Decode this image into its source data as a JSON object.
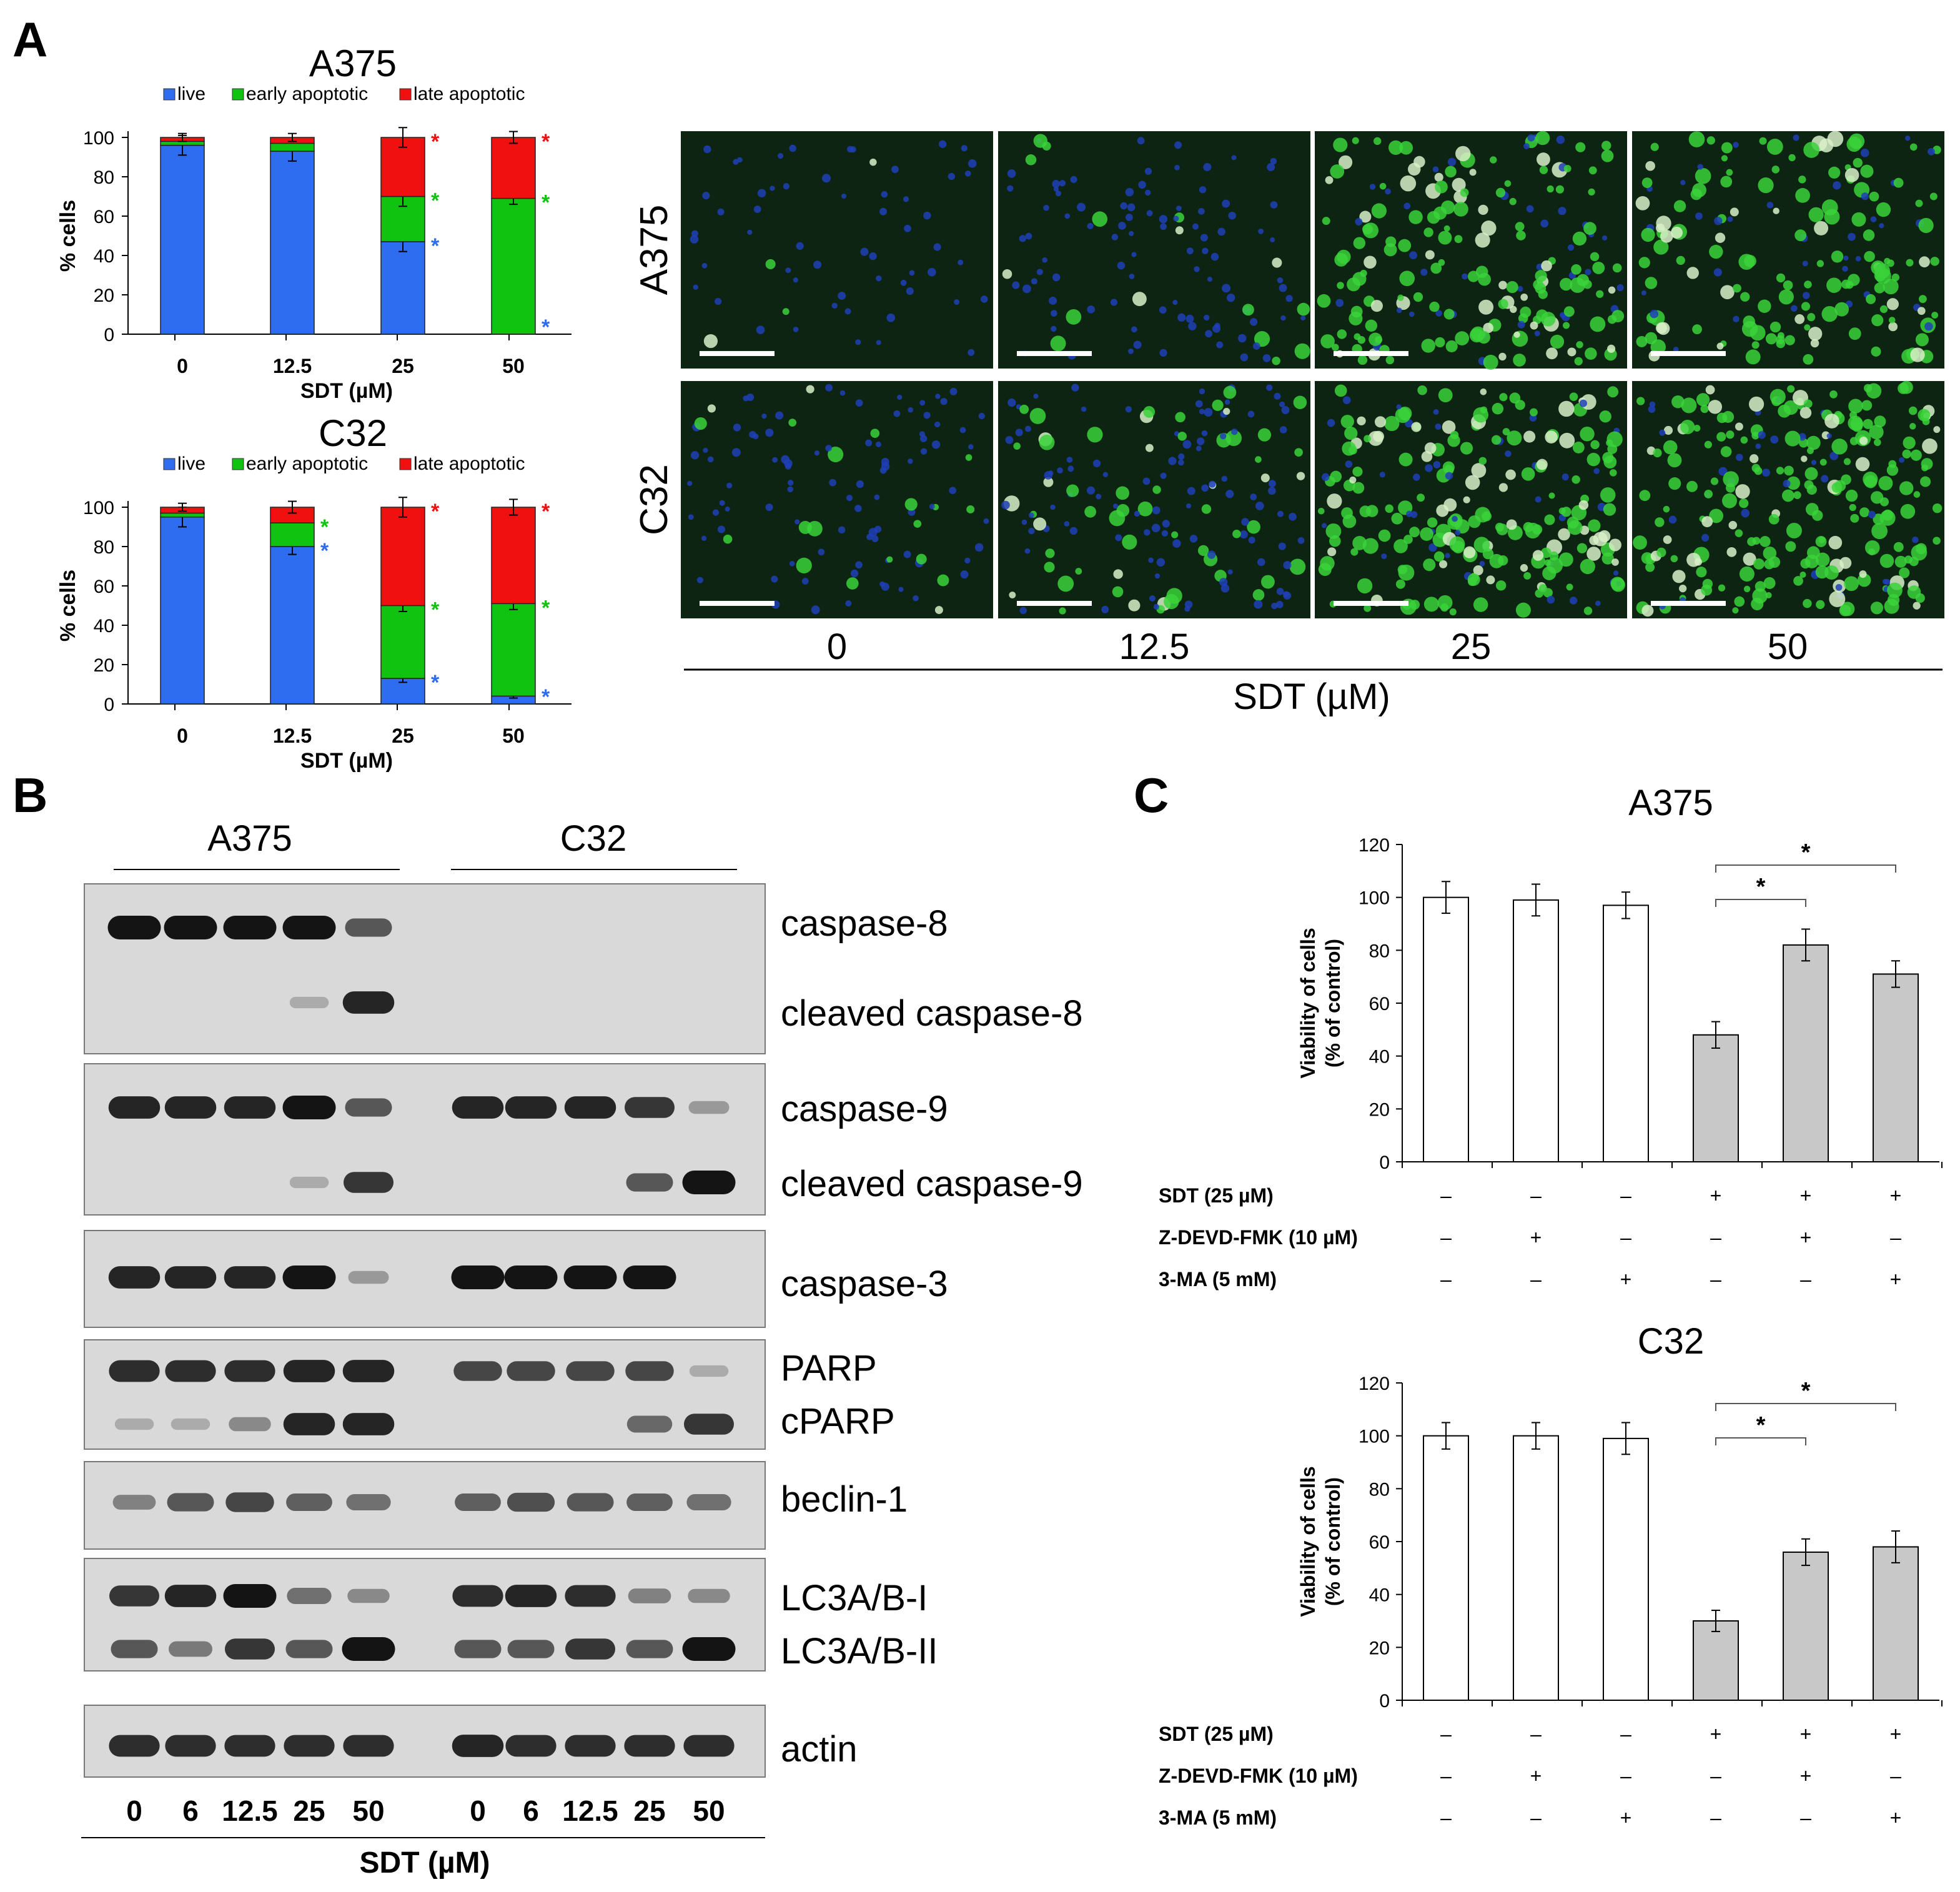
{
  "panel_labels": {
    "A": "A",
    "B": "B",
    "C": "C"
  },
  "colors": {
    "live": "#2f6df0",
    "early": "#10c310",
    "late": "#f01010",
    "bar_white": "#ffffff",
    "bar_grey": "#c8c8c8",
    "micro_bg": "#0d2412",
    "blot_bg": "#d9d9d9",
    "band": "#141414"
  },
  "chart_data": [
    {
      "type": "bar",
      "stacked": true,
      "title": "A375",
      "categories": [
        "0",
        "12.5",
        "25",
        "50"
      ],
      "xlabel": "SDT (µM)",
      "ylabel": "% cells",
      "ylim": [
        0,
        100
      ],
      "yticks": [
        "0",
        "20",
        "40",
        "60",
        "80",
        "100"
      ],
      "legend": [
        "live",
        "early apoptotic",
        "late apoptotic"
      ],
      "series": [
        {
          "name": "live",
          "values": [
            96,
            93,
            47,
            0
          ],
          "err": [
            5,
            5,
            5,
            0
          ]
        },
        {
          "name": "early apoptotic",
          "values": [
            2,
            4,
            23,
            69
          ],
          "err": [
            0,
            0,
            5,
            3
          ]
        },
        {
          "name": "late apoptotic",
          "values": [
            2,
            3,
            30,
            31
          ],
          "err": [
            2,
            2,
            5,
            3
          ]
        }
      ],
      "significance": [
        [
          "",
          "",
          "*",
          "*"
        ],
        [
          "",
          "",
          "*",
          "*"
        ],
        [
          "",
          "",
          "*",
          "*"
        ]
      ]
    },
    {
      "type": "bar",
      "stacked": true,
      "title": "C32",
      "categories": [
        "0",
        "12.5",
        "25",
        "50"
      ],
      "xlabel": "SDT (µM)",
      "ylabel": "% cells",
      "ylim": [
        0,
        100
      ],
      "yticks": [
        "0",
        "20",
        "40",
        "60",
        "80",
        "100"
      ],
      "legend": [
        "live",
        "early apoptotic",
        "late apoptotic"
      ],
      "series": [
        {
          "name": "live",
          "values": [
            95,
            80,
            13,
            4
          ],
          "err": [
            5,
            4,
            2,
            1
          ]
        },
        {
          "name": "early apoptotic",
          "values": [
            2,
            12,
            37,
            47
          ],
          "err": [
            0,
            0,
            3,
            3
          ]
        },
        {
          "name": "late apoptotic",
          "values": [
            3,
            8,
            50,
            49
          ],
          "err": [
            2,
            3,
            5,
            4
          ]
        }
      ],
      "significance": [
        [
          "",
          "*",
          "*",
          "*"
        ],
        [
          "",
          "*",
          "*",
          "*"
        ],
        [
          "",
          "",
          "*",
          "*"
        ]
      ]
    },
    {
      "type": "bar",
      "title": "A375",
      "ylabel": "Viability of cells",
      "ylabel2": "(% of control)",
      "ylim": [
        0,
        120
      ],
      "yticks": [
        "0",
        "20",
        "40",
        "60",
        "80",
        "100",
        "120"
      ],
      "values": [
        100,
        99,
        97,
        48,
        82,
        71
      ],
      "err": [
        6,
        6,
        5,
        5,
        6,
        5
      ],
      "grey": [
        false,
        false,
        false,
        true,
        true,
        true
      ],
      "conditions": [
        {
          "label": "SDT (25 µM)",
          "signs": [
            "–",
            "–",
            "–",
            "+",
            "+",
            "+"
          ]
        },
        {
          "label": "Z-DEVD-FMK (10 µM)",
          "signs": [
            "–",
            "+",
            "–",
            "–",
            "+",
            "–"
          ]
        },
        {
          "label": "3-MA (5 mM)",
          "signs": [
            "–",
            "–",
            "+",
            "–",
            "–",
            "+"
          ]
        }
      ],
      "brackets": [
        {
          "from": 3,
          "to": 4,
          "label": "*"
        },
        {
          "from": 3,
          "to": 5,
          "label": "*"
        }
      ]
    },
    {
      "type": "bar",
      "title": "C32",
      "ylabel": "Viability of cells",
      "ylabel2": "(% of control)",
      "ylim": [
        0,
        120
      ],
      "yticks": [
        "0",
        "20",
        "40",
        "60",
        "80",
        "100",
        "120"
      ],
      "values": [
        100,
        100,
        99,
        30,
        56,
        58
      ],
      "err": [
        5,
        5,
        6,
        4,
        5,
        6
      ],
      "grey": [
        false,
        false,
        false,
        true,
        true,
        true
      ],
      "conditions": [
        {
          "label": "SDT (25 µM)",
          "signs": [
            "–",
            "–",
            "–",
            "+",
            "+",
            "+"
          ]
        },
        {
          "label": "Z-DEVD-FMK (10 µM)",
          "signs": [
            "–",
            "+",
            "–",
            "–",
            "+",
            "–"
          ]
        },
        {
          "label": "3-MA (5 mM)",
          "signs": [
            "–",
            "–",
            "+",
            "–",
            "–",
            "+"
          ]
        }
      ],
      "brackets": [
        {
          "from": 3,
          "to": 4,
          "label": "*"
        },
        {
          "from": 3,
          "to": 5,
          "label": "*"
        }
      ]
    }
  ],
  "micrographs": {
    "rows": [
      "A375",
      "C32"
    ],
    "columns": [
      "0",
      "12.5",
      "25",
      "50"
    ],
    "xlabel": "SDT (µM)"
  },
  "western_blot": {
    "groups": [
      "A375",
      "C32"
    ],
    "lanes": [
      "0",
      "6",
      "12.5",
      "25",
      "50"
    ],
    "xlabel": "SDT (µM)",
    "blots": [
      {
        "labels": [
          "caspase-8",
          "cleaved caspase-8"
        ],
        "A375": [
          [
            1.0,
            1.0,
            1.0,
            1.0,
            0.6
          ],
          [
            0,
            0,
            0,
            0.1,
            0.9
          ]
        ],
        "C32": [
          [
            0,
            0,
            0,
            0,
            0
          ],
          [
            0,
            0,
            0,
            0,
            0
          ]
        ]
      },
      {
        "labels": [
          "caspase-9",
          "cleaved caspase-9"
        ],
        "A375": [
          [
            0.9,
            0.9,
            0.9,
            1.0,
            0.6
          ],
          [
            0,
            0,
            0,
            0.1,
            0.8
          ]
        ],
        "C32": [
          [
            0.9,
            0.9,
            0.9,
            0.8,
            0.2
          ],
          [
            0,
            0,
            0,
            0.6,
            1.0
          ]
        ]
      },
      {
        "labels": [
          "caspase-3"
        ],
        "A375": [
          [
            0.9,
            0.9,
            0.9,
            1.0,
            0.2
          ]
        ],
        "C32": [
          [
            1.0,
            1.0,
            1.0,
            1.0,
            0
          ]
        ]
      },
      {
        "labels": [
          "PARP",
          "cPARP"
        ],
        "A375": [
          [
            0.85,
            0.85,
            0.85,
            0.9,
            0.9
          ],
          [
            0.1,
            0.1,
            0.3,
            0.9,
            0.9
          ]
        ],
        "C32": [
          [
            0.7,
            0.7,
            0.7,
            0.7,
            0.1
          ],
          [
            0,
            0,
            0,
            0.5,
            0.8
          ]
        ]
      },
      {
        "labels": [
          "beclin-1"
        ],
        "A375": [
          [
            0.35,
            0.6,
            0.7,
            0.55,
            0.45
          ]
        ],
        "C32": [
          [
            0.55,
            0.65,
            0.6,
            0.55,
            0.45
          ]
        ]
      },
      {
        "labels": [
          "LC3A/B-I",
          "LC3A/B-II"
        ],
        "A375": [
          [
            0.8,
            0.9,
            1.0,
            0.45,
            0.3
          ],
          [
            0.6,
            0.4,
            0.8,
            0.6,
            1.0
          ]
        ],
        "C32": [
          [
            0.85,
            0.9,
            0.85,
            0.35,
            0.3
          ],
          [
            0.6,
            0.6,
            0.8,
            0.6,
            1.0
          ]
        ]
      },
      {
        "labels": [
          "actin"
        ],
        "A375": [
          [
            0.85,
            0.85,
            0.85,
            0.85,
            0.85
          ]
        ],
        "C32": [
          [
            0.9,
            0.85,
            0.85,
            0.85,
            0.85
          ]
        ]
      }
    ]
  }
}
